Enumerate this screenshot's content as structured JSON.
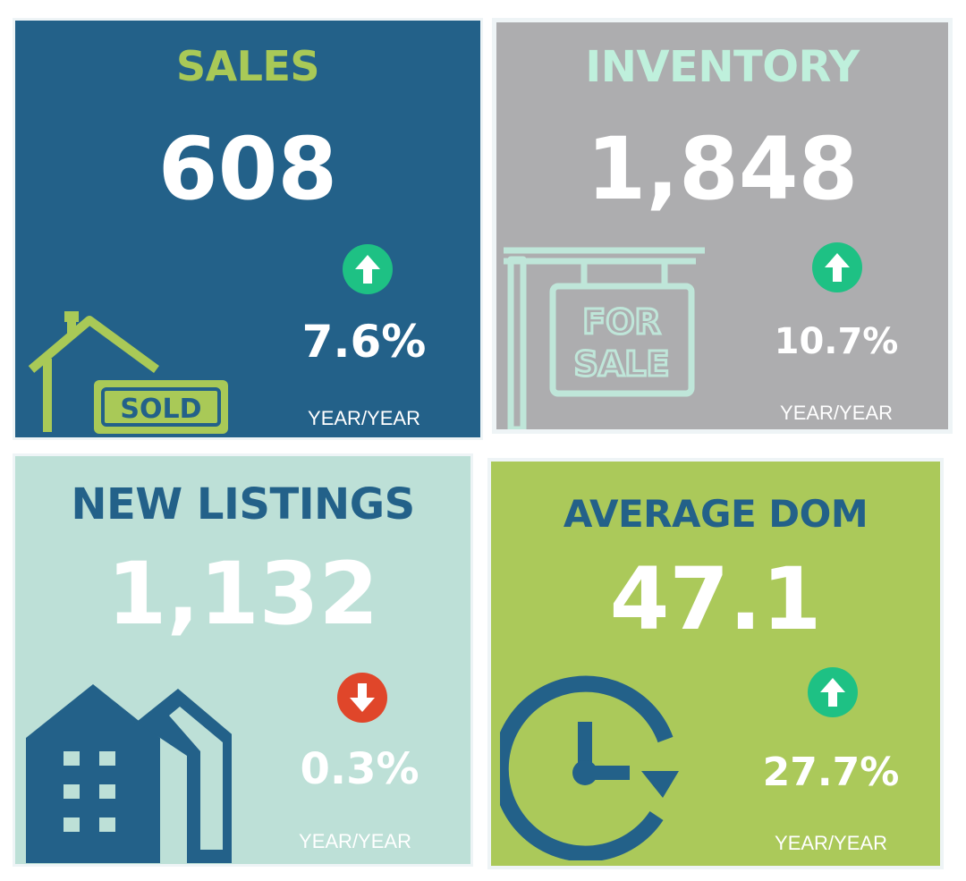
{
  "cards": {
    "sales": {
      "title": "SALES",
      "value": "608",
      "change": "7.6%",
      "direction": "up",
      "period": "YEAR/YEAR",
      "sign_text": "SOLD"
    },
    "inventory": {
      "title": "INVENTORY",
      "value": "1,848",
      "change": "10.7%",
      "direction": "up",
      "period": "YEAR/YEAR",
      "sign_line1": "FOR",
      "sign_line2": "SALE"
    },
    "new_listings": {
      "title": "NEW LISTINGS",
      "value": "1,132",
      "change": "0.3%",
      "direction": "down",
      "period": "YEAR/YEAR"
    },
    "average_dom": {
      "title": "AVERAGE DOM",
      "value": "47.1",
      "change": "27.7%",
      "direction": "up",
      "period": "YEAR/YEAR"
    }
  },
  "colors": {
    "sales_bg": "#236189",
    "inventory_bg": "#adadaf",
    "new_listings_bg": "#bde0d7",
    "average_dom_bg": "#abc95a",
    "up_badge": "#1ec184",
    "down_badge": "#e0462a",
    "lime": "#a9c957",
    "mint": "#bff0dc",
    "navy": "#236189"
  },
  "icons": {
    "sales": "house-sold-icon",
    "inventory": "for-sale-sign-icon",
    "new_listings": "buildings-icon",
    "average_dom": "clock-refresh-icon"
  }
}
